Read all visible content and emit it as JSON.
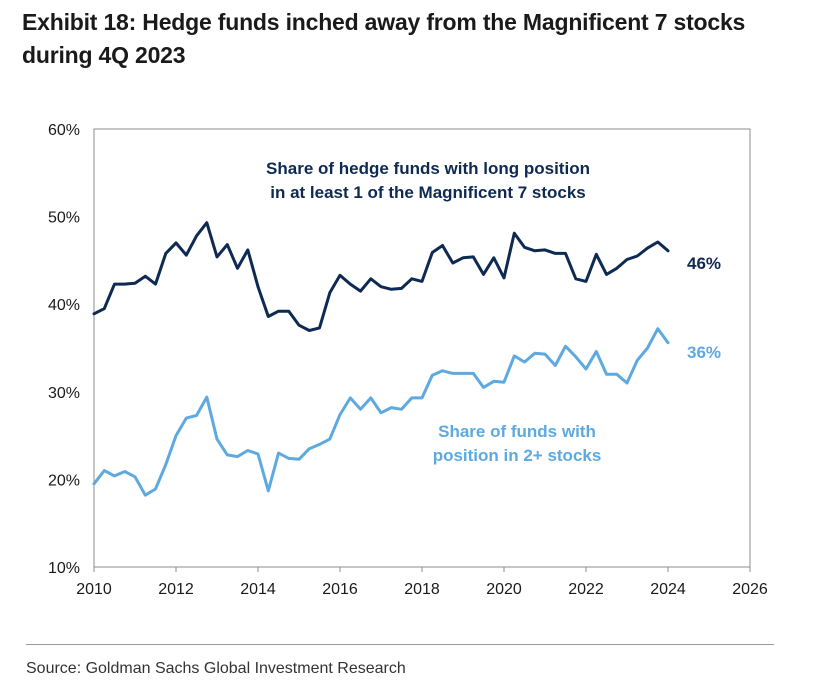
{
  "title": "Exhibit 18: Hedge funds inched away from the Magnificent 7 stocks during 4Q 2023",
  "source": "Source: Goldman Sachs Global Investment Research",
  "colors": {
    "series_dark": "#0e2a52",
    "series_light": "#5da9e0",
    "axis": "#8c8c8c",
    "text": "#1a1a1a"
  },
  "chart_data": {
    "type": "line",
    "title": "",
    "xlabel": "",
    "ylabel": "",
    "xlim": [
      2010,
      2026
    ],
    "ylim": [
      10,
      60
    ],
    "x_ticks": [
      "2010",
      "2012",
      "2014",
      "2016",
      "2018",
      "2020",
      "2022",
      "2024",
      "2026"
    ],
    "y_ticks": [
      "10%",
      "20%",
      "30%",
      "40%",
      "50%",
      "60%"
    ],
    "grid": false,
    "legend": "none",
    "annotations": [
      {
        "series": 0,
        "text_lines": [
          "Share of hedge funds with long position",
          "in at least 1 of the Magnificent 7 stocks"
        ]
      },
      {
        "series": 1,
        "text_lines": [
          "Share of funds with",
          "position in 2+ stocks"
        ]
      }
    ],
    "end_labels": [
      "46%",
      "36%"
    ],
    "x": [
      2010.0,
      2010.25,
      2010.5,
      2010.75,
      2011.0,
      2011.25,
      2011.5,
      2011.75,
      2012.0,
      2012.25,
      2012.5,
      2012.75,
      2013.0,
      2013.25,
      2013.5,
      2013.75,
      2014.0,
      2014.25,
      2014.5,
      2014.75,
      2015.0,
      2015.25,
      2015.5,
      2015.75,
      2016.0,
      2016.25,
      2016.5,
      2016.75,
      2017.0,
      2017.25,
      2017.5,
      2017.75,
      2018.0,
      2018.25,
      2018.5,
      2018.75,
      2019.0,
      2019.25,
      2019.5,
      2019.75,
      2020.0,
      2020.25,
      2020.5,
      2020.75,
      2021.0,
      2021.25,
      2021.5,
      2021.75,
      2022.0,
      2022.25,
      2022.5,
      2022.75,
      2023.0,
      2023.25,
      2023.5,
      2023.75,
      2024.0
    ],
    "series": [
      {
        "values": [
          38.9,
          39.5,
          42.3,
          42.3,
          42.4,
          43.2,
          42.3,
          45.8,
          47.0,
          45.6,
          47.8,
          49.3,
          45.4,
          46.8,
          44.1,
          46.2,
          42.0,
          38.6,
          39.2,
          39.2,
          37.6,
          37.0,
          37.3,
          41.3,
          43.3,
          42.3,
          41.5,
          42.9,
          42.0,
          41.7,
          41.8,
          42.9,
          42.6,
          45.9,
          46.7,
          44.7,
          45.3,
          45.4,
          43.4,
          45.3,
          43.0,
          48.1,
          46.5,
          46.1,
          46.2,
          45.8,
          45.8,
          42.9,
          42.6,
          45.7,
          43.4,
          44.1,
          45.1,
          45.5,
          46.4,
          47.1,
          46.1
        ]
      },
      {
        "values": [
          19.5,
          21.0,
          20.4,
          20.9,
          20.3,
          18.2,
          18.9,
          21.7,
          25.0,
          27.0,
          27.3,
          29.4,
          24.6,
          22.8,
          22.6,
          23.3,
          22.9,
          18.7,
          23.0,
          22.4,
          22.3,
          23.5,
          24.0,
          24.6,
          27.4,
          29.3,
          28.0,
          29.3,
          27.6,
          28.2,
          28.0,
          29.3,
          29.3,
          31.9,
          32.4,
          32.1,
          32.1,
          32.1,
          30.5,
          31.2,
          31.1,
          34.1,
          33.4,
          34.4,
          34.3,
          33.0,
          35.2,
          34.0,
          32.6,
          34.6,
          32.0,
          32.0,
          31.0,
          33.6,
          35.0,
          37.2,
          35.6
        ]
      }
    ]
  }
}
